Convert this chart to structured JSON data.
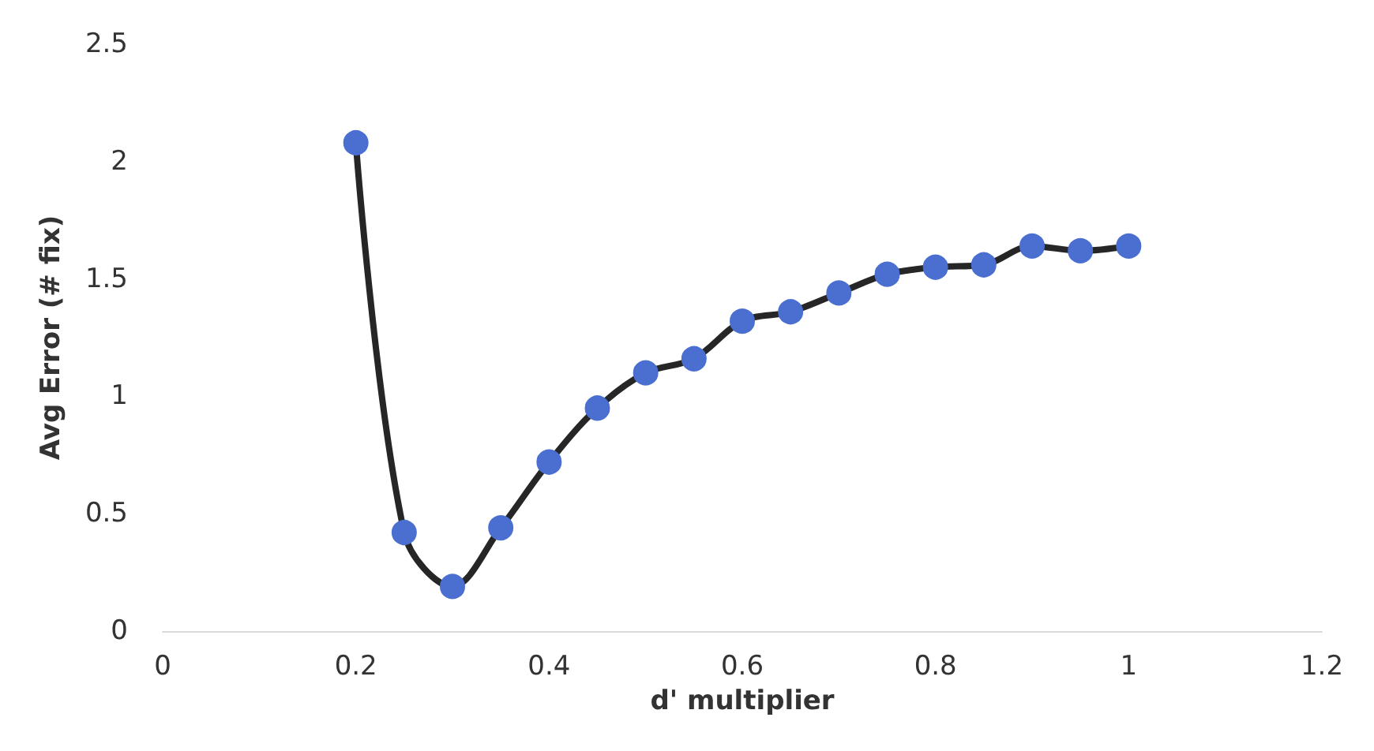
{
  "chart_data": {
    "type": "line",
    "xlabel": "d' multiplier",
    "ylabel": "Avg Error (# fix)",
    "x": [
      0.2,
      0.25,
      0.3,
      0.35,
      0.4,
      0.45,
      0.5,
      0.55,
      0.6,
      0.65,
      0.7,
      0.75,
      0.8,
      0.85,
      0.9,
      0.95,
      1.0
    ],
    "series": [
      {
        "color": "#4a6fd0",
        "values": [
          2.08,
          0.42,
          0.19,
          0.44,
          0.72,
          0.95,
          1.1,
          1.16,
          1.32,
          1.36,
          1.44,
          1.52,
          1.55,
          1.56,
          1.64,
          1.62,
          1.64
        ]
      }
    ],
    "xlim": [
      0,
      1.2
    ],
    "xticks": [
      0,
      0.2,
      0.4,
      0.6,
      0.8,
      1,
      1.2
    ],
    "ylim": [
      0,
      2.5
    ],
    "yticks": [
      0,
      0.5,
      1,
      1.5,
      2,
      2.5
    ],
    "grid": false,
    "marker": "circle",
    "line_style": "solid"
  }
}
